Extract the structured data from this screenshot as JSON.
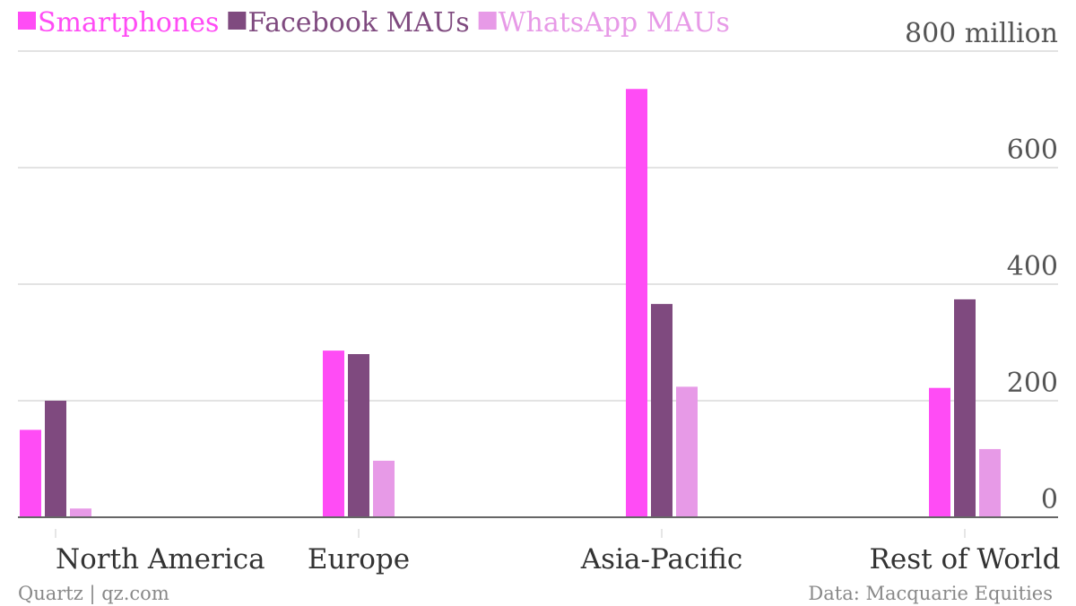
{
  "chart_data": {
    "type": "bar",
    "categories": [
      "North America",
      "Europe",
      "Asia-Pacific",
      "Rest of World"
    ],
    "series": [
      {
        "name": "Smartphones",
        "color": "#ff4cf5",
        "values": [
          150,
          286,
          735,
          222
        ]
      },
      {
        "name": "Facebook MAUs",
        "color": "#7f4a7f",
        "values": [
          200,
          280,
          366,
          374
        ]
      },
      {
        "name": "WhatsApp MAUs",
        "color": "#e79ae7",
        "values": [
          15,
          97,
          224,
          117
        ]
      }
    ],
    "ylim": [
      0,
      800
    ],
    "yticks": [
      0,
      200,
      400,
      600,
      800
    ],
    "ytick_labels": [
      "0",
      "200",
      "400",
      "600",
      "800 million"
    ],
    "title": "",
    "xlabel": "",
    "ylabel": "",
    "grid": true,
    "legend_position": "top-left",
    "axis_position": "right"
  },
  "footer": {
    "source_left": "Quartz | qz.com",
    "source_right": "Data: Macquarie Equities"
  },
  "colors": {
    "gridline": "#e3e3e3",
    "baseline": "#666666",
    "tick_text": "#555555",
    "footer_text": "#888888"
  }
}
